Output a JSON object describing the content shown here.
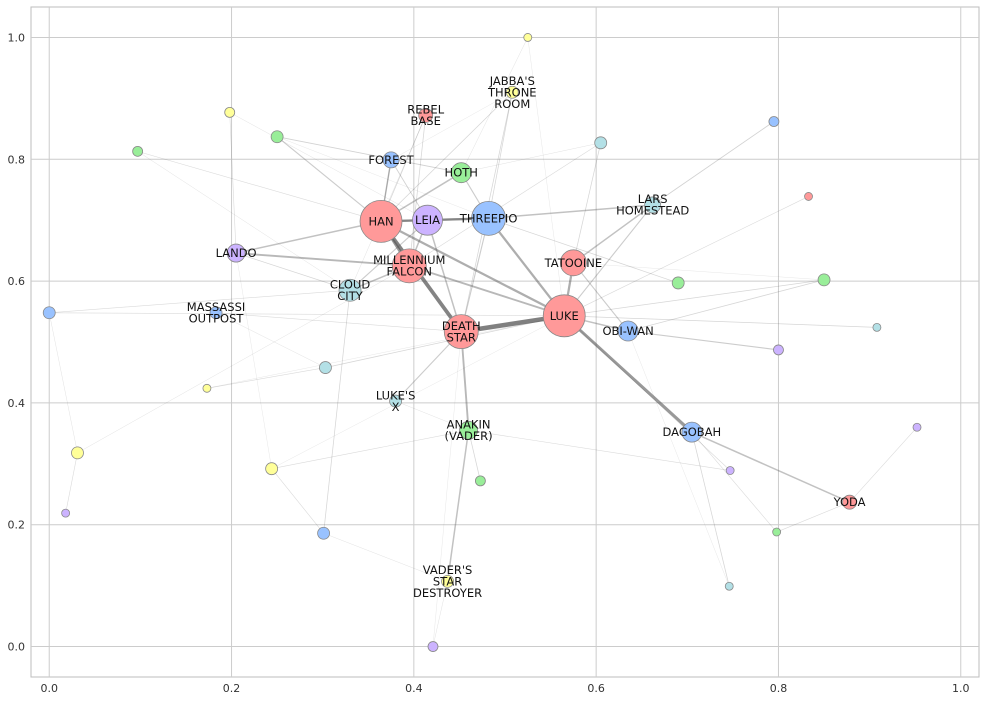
{
  "chart_data": {
    "type": "network",
    "title": "",
    "xlabel": "",
    "ylabel": "",
    "xlim": [
      -0.02,
      1.02
    ],
    "ylim": [
      -0.05,
      1.05
    ],
    "grid": true,
    "x_ticks": [
      0.0,
      0.2,
      0.4,
      0.6,
      0.8,
      1.0
    ],
    "y_ticks": [
      0.0,
      0.2,
      0.4,
      0.6,
      0.8,
      1.0
    ],
    "x_tick_labels": [
      "0.0",
      "0.2",
      "0.4",
      "0.6",
      "0.8",
      "1.0"
    ],
    "y_tick_labels": [
      "0.0",
      "0.2",
      "0.4",
      "0.6",
      "0.8",
      "1.0"
    ],
    "colors": {
      "red": "#ff9999",
      "blue": "#99c2ff",
      "purple": "#ccb3ff",
      "green": "#99ee99",
      "teal": "#b3e0e6",
      "yellow": "#ffff99"
    },
    "nodes": [
      {
        "id": "han",
        "label": "HAN",
        "x": 0.364,
        "y": 0.698,
        "size": 21,
        "color": "red"
      },
      {
        "id": "leia",
        "label": "LEIA",
        "x": 0.415,
        "y": 0.7,
        "size": 15,
        "color": "purple"
      },
      {
        "id": "threepio",
        "label": "THREEPIO",
        "x": 0.482,
        "y": 0.703,
        "size": 17,
        "color": "blue"
      },
      {
        "id": "hoth",
        "label": "HOTH",
        "x": 0.452,
        "y": 0.778,
        "size": 10,
        "color": "green"
      },
      {
        "id": "forest",
        "label": "FOREST",
        "x": 0.375,
        "y": 0.799,
        "size": 8,
        "color": "blue"
      },
      {
        "id": "rebel_base",
        "label": "REBEL\nBASE",
        "x": 0.413,
        "y": 0.872,
        "size": 7,
        "color": "red"
      },
      {
        "id": "jabbas",
        "label": "JABBA'S\nTHRONE\nROOM",
        "x": 0.508,
        "y": 0.91,
        "size": 6,
        "color": "yellow"
      },
      {
        "id": "lando",
        "label": "LANDO",
        "x": 0.205,
        "y": 0.646,
        "size": 9,
        "color": "purple"
      },
      {
        "id": "falcon",
        "label": "MILLENNIUM\nFALCON",
        "x": 0.395,
        "y": 0.625,
        "size": 17,
        "color": "red"
      },
      {
        "id": "cloud_city",
        "label": "CLOUD\nCITY",
        "x": 0.33,
        "y": 0.585,
        "size": 11,
        "color": "teal"
      },
      {
        "id": "massassi",
        "label": "MASSASSI\nOUTPOST",
        "x": 0.183,
        "y": 0.548,
        "size": 6,
        "color": "blue"
      },
      {
        "id": "tatooine",
        "label": "TATOOINE",
        "x": 0.575,
        "y": 0.63,
        "size": 13,
        "color": "red"
      },
      {
        "id": "lars",
        "label": "LARS\nHOMESTEAD",
        "x": 0.662,
        "y": 0.725,
        "size": 8,
        "color": "teal"
      },
      {
        "id": "luke",
        "label": "LUKE",
        "x": 0.565,
        "y": 0.543,
        "size": 21,
        "color": "red"
      },
      {
        "id": "death_star",
        "label": "DEATH\nSTAR",
        "x": 0.452,
        "y": 0.517,
        "size": 17,
        "color": "red"
      },
      {
        "id": "obiwan",
        "label": "OBI-WAN",
        "x": 0.635,
        "y": 0.518,
        "size": 10,
        "color": "blue"
      },
      {
        "id": "lukes_x",
        "label": "LUKE'S\nX",
        "x": 0.38,
        "y": 0.403,
        "size": 6,
        "color": "teal"
      },
      {
        "id": "anakin",
        "label": "ANAKIN\n(VADER)",
        "x": 0.46,
        "y": 0.355,
        "size": 9,
        "color": "green"
      },
      {
        "id": "dagobah",
        "label": "DAGOBAH",
        "x": 0.705,
        "y": 0.352,
        "size": 10,
        "color": "blue"
      },
      {
        "id": "yoda",
        "label": "YODA",
        "x": 0.878,
        "y": 0.237,
        "size": 7,
        "color": "red"
      },
      {
        "id": "vaders_sd",
        "label": "VADER'S\nSTAR\nDESTROYER",
        "x": 0.437,
        "y": 0.107,
        "size": 6,
        "color": "yellow"
      },
      {
        "id": "n1",
        "label": "",
        "x": 0.525,
        "y": 1.0,
        "size": 4,
        "color": "yellow"
      },
      {
        "id": "n2",
        "label": "",
        "x": 0.198,
        "y": 0.877,
        "size": 5,
        "color": "yellow"
      },
      {
        "id": "n3",
        "label": "",
        "x": 0.25,
        "y": 0.837,
        "size": 6,
        "color": "green"
      },
      {
        "id": "n4",
        "label": "",
        "x": 0.097,
        "y": 0.813,
        "size": 5,
        "color": "green"
      },
      {
        "id": "n5",
        "label": "",
        "x": 0.795,
        "y": 0.862,
        "size": 5,
        "color": "blue"
      },
      {
        "id": "n6",
        "label": "",
        "x": 0.605,
        "y": 0.827,
        "size": 6,
        "color": "teal"
      },
      {
        "id": "n7",
        "label": "",
        "x": 0.833,
        "y": 0.739,
        "size": 4,
        "color": "red"
      },
      {
        "id": "n8",
        "label": "",
        "x": 0.69,
        "y": 0.597,
        "size": 6,
        "color": "green"
      },
      {
        "id": "n9",
        "label": "",
        "x": 0.85,
        "y": 0.602,
        "size": 6,
        "color": "green"
      },
      {
        "id": "n10",
        "label": "",
        "x": 0.0,
        "y": 0.548,
        "size": 6,
        "color": "blue"
      },
      {
        "id": "n11",
        "label": "",
        "x": 0.908,
        "y": 0.524,
        "size": 4,
        "color": "teal"
      },
      {
        "id": "n12",
        "label": "",
        "x": 0.8,
        "y": 0.487,
        "size": 5,
        "color": "purple"
      },
      {
        "id": "n13",
        "label": "",
        "x": 0.303,
        "y": 0.458,
        "size": 6,
        "color": "teal"
      },
      {
        "id": "n14",
        "label": "",
        "x": 0.173,
        "y": 0.424,
        "size": 4,
        "color": "yellow"
      },
      {
        "id": "n15",
        "label": "",
        "x": 0.952,
        "y": 0.36,
        "size": 4,
        "color": "purple"
      },
      {
        "id": "n16",
        "label": "",
        "x": 0.031,
        "y": 0.318,
        "size": 6,
        "color": "yellow"
      },
      {
        "id": "n17",
        "label": "",
        "x": 0.244,
        "y": 0.292,
        "size": 6,
        "color": "yellow"
      },
      {
        "id": "n18",
        "label": "",
        "x": 0.747,
        "y": 0.289,
        "size": 4,
        "color": "purple"
      },
      {
        "id": "n19",
        "label": "",
        "x": 0.473,
        "y": 0.272,
        "size": 5,
        "color": "green"
      },
      {
        "id": "n20",
        "label": "",
        "x": 0.018,
        "y": 0.219,
        "size": 4,
        "color": "purple"
      },
      {
        "id": "n21",
        "label": "",
        "x": 0.301,
        "y": 0.186,
        "size": 6,
        "color": "blue"
      },
      {
        "id": "n22",
        "label": "",
        "x": 0.798,
        "y": 0.188,
        "size": 4,
        "color": "green"
      },
      {
        "id": "n23",
        "label": "",
        "x": 0.746,
        "y": 0.099,
        "size": 4,
        "color": "teal"
      },
      {
        "id": "n24",
        "label": "",
        "x": 0.421,
        "y": 0.0,
        "size": 5,
        "color": "purple"
      }
    ],
    "edges": [
      [
        "luke",
        "death_star",
        6
      ],
      [
        "han",
        "death_star",
        5
      ],
      [
        "han",
        "falcon",
        4
      ],
      [
        "luke",
        "dagobah",
        4
      ],
      [
        "han",
        "luke",
        3
      ],
      [
        "luke",
        "threepio",
        3
      ],
      [
        "luke",
        "tatooine",
        3
      ],
      [
        "han",
        "leia",
        3
      ],
      [
        "leia",
        "threepio",
        3
      ],
      [
        "han",
        "threepio",
        3
      ],
      [
        "lando",
        "falcon",
        2.5
      ],
      [
        "falcon",
        "luke",
        2.5
      ],
      [
        "death_star",
        "anakin",
        2.5
      ],
      [
        "han",
        "lando",
        2
      ],
      [
        "han",
        "hoth",
        2
      ],
      [
        "han",
        "forest",
        2
      ],
      [
        "leia",
        "death_star",
        2
      ],
      [
        "leia",
        "falcon",
        2
      ],
      [
        "threepio",
        "lars",
        2
      ],
      [
        "lars",
        "tatooine",
        2
      ],
      [
        "luke",
        "obiwan",
        2
      ],
      [
        "dagobah",
        "yoda",
        2
      ],
      [
        "anakin",
        "vaders_sd",
        2
      ],
      [
        "falcon",
        "cloud_city",
        2
      ],
      [
        "hoth",
        "threepio",
        1.5
      ],
      [
        "luke",
        "lars",
        1.5
      ],
      [
        "tatooine",
        "obiwan",
        1.5
      ],
      [
        "obiwan",
        "n12",
        1.5
      ],
      [
        "cloud_city",
        "leia",
        1.5
      ],
      [
        "lukes_x",
        "death_star",
        1.5
      ],
      [
        "threepio",
        "death_star",
        1.5
      ],
      [
        "han",
        "n3",
        1.5
      ],
      [
        "lars",
        "n5",
        1.2
      ],
      [
        "hoth",
        "n3",
        1.2
      ],
      [
        "forest",
        "leia",
        1.2
      ],
      [
        "forest",
        "han",
        1.2
      ],
      [
        "rebel_base",
        "han",
        1
      ],
      [
        "rebel_base",
        "falcon",
        1
      ],
      [
        "jabbas",
        "han",
        1
      ],
      [
        "jabbas",
        "death_star",
        1
      ],
      [
        "jabbas",
        "threepio",
        1
      ],
      [
        "n6",
        "tatooine",
        1
      ],
      [
        "n6",
        "falcon",
        0.8
      ],
      [
        "threepio",
        "n8",
        1
      ],
      [
        "luke",
        "n9",
        1
      ],
      [
        "luke",
        "n11",
        1
      ],
      [
        "luke",
        "n7",
        0.8
      ],
      [
        "obiwan",
        "n9",
        1
      ],
      [
        "dagobah",
        "n22",
        0.8
      ],
      [
        "dagobah",
        "n23",
        1
      ],
      [
        "yoda",
        "n22",
        0.8
      ],
      [
        "yoda",
        "n15",
        0.8
      ],
      [
        "luke",
        "n18",
        0.8
      ],
      [
        "n21",
        "cloud_city",
        1
      ],
      [
        "n17",
        "anakin",
        0.8
      ],
      [
        "n17",
        "n21",
        0.8
      ],
      [
        "n13",
        "luke",
        1
      ],
      [
        "n13",
        "n14",
        0.8
      ],
      [
        "n10",
        "cloud_city",
        0.8
      ],
      [
        "n10",
        "luke",
        0.8
      ],
      [
        "n10",
        "n16",
        0.6
      ],
      [
        "n16",
        "n20",
        0.8
      ],
      [
        "n16",
        "falcon",
        0.6
      ],
      [
        "anakin",
        "n19",
        1
      ],
      [
        "anakin",
        "n18",
        0.8
      ],
      [
        "lando",
        "cloud_city",
        1
      ],
      [
        "lando",
        "n2",
        0.8
      ],
      [
        "massassi",
        "death_star",
        0.8
      ],
      [
        "massassi",
        "n13",
        0.6
      ],
      [
        "n4",
        "han",
        0.8
      ],
      [
        "n4",
        "cloud_city",
        0.6
      ],
      [
        "n24",
        "vaders_sd",
        0.6
      ],
      [
        "n21",
        "vaders_sd",
        0.6
      ],
      [
        "n1",
        "hoth",
        0.6
      ],
      [
        "n1",
        "luke",
        0.5
      ],
      [
        "rebel_base",
        "cloud_city",
        0.6
      ],
      [
        "leia",
        "n2",
        0.6
      ],
      [
        "hoth",
        "n6",
        0.6
      ],
      [
        "lukes_x",
        "anakin",
        0.6
      ],
      [
        "luke",
        "n17",
        0.5
      ],
      [
        "obiwan",
        "n23",
        0.5
      ],
      [
        "death_star",
        "n24",
        0.5
      ],
      [
        "lando",
        "n17",
        0.5
      ],
      [
        "n3",
        "threepio",
        0.5
      ],
      [
        "tatooine",
        "n9",
        0.5
      ],
      [
        "forest",
        "jabbas",
        0.5
      ],
      [
        "n14",
        "luke",
        0.5
      ]
    ]
  }
}
